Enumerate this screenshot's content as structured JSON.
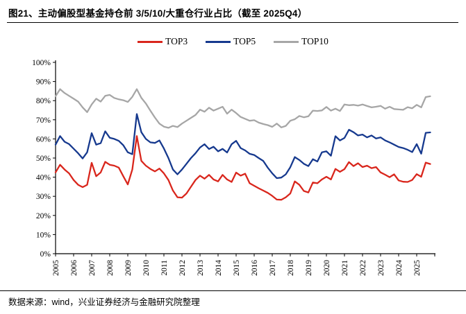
{
  "header": {
    "title": "图21、主动偏股型基金持仓前 3/5/10/大重仓行业占比（截至 2025Q4）"
  },
  "legend": [
    {
      "label": "TOP3",
      "color": "#D9261C"
    },
    {
      "label": "TOP5",
      "color": "#16398E"
    },
    {
      "label": "TOP10",
      "color": "#A6A6A6"
    }
  ],
  "footer": {
    "source": "数据来源：wind，兴业证券经济与金融研究院整理"
  },
  "chart_data": {
    "type": "line",
    "title": "主动偏股型基金持仓前3/5/10大重仓行业占比",
    "xlabel": "",
    "ylabel": "",
    "ylim": [
      0,
      100
    ],
    "grid": false,
    "legend_position": "top",
    "y_tick_labels": [
      "0%",
      "10%",
      "20%",
      "30%",
      "40%",
      "50%",
      "60%",
      "70%",
      "80%",
      "90%",
      "100%"
    ],
    "x_year_labels": [
      "2005",
      "2006",
      "2007",
      "2008",
      "2009",
      "2010",
      "2011",
      "2012",
      "2013",
      "2014",
      "2015",
      "2016",
      "2017",
      "2018",
      "2019",
      "2020",
      "2021",
      "2022",
      "2023",
      "2024",
      "2025"
    ],
    "x_frequency": "quarterly",
    "x_start": "2005Q1",
    "x_end": "2025Q4",
    "series": [
      {
        "name": "TOP3",
        "color": "#D9261C",
        "values": [
          42.5,
          46.5,
          44,
          42,
          38.5,
          36,
          34.8,
          36,
          47.5,
          40.5,
          42.5,
          48,
          46.5,
          46,
          45,
          40.5,
          36.2,
          44,
          61.5,
          48.5,
          46,
          44.3,
          43,
          44.5,
          42,
          38.5,
          33,
          29.5,
          29.3,
          31.5,
          35,
          38.5,
          40.8,
          39.2,
          41.2,
          38.8,
          37.8,
          41.2,
          38.8,
          37.5,
          42.4,
          40.8,
          41.8,
          36.8,
          35.5,
          34.2,
          33,
          31.8,
          30.2,
          28.3,
          28.2,
          29.5,
          31.5,
          37.8,
          36,
          32.8,
          32,
          37.2,
          36.8,
          38.8,
          40.2,
          38.8,
          44.3,
          42.8,
          44.2,
          47.9,
          45.8,
          47.3,
          45.3,
          46,
          44.7,
          45.3,
          42.5,
          41.3,
          40,
          41.5,
          38.3,
          37.6,
          37.5,
          38.5,
          41.6,
          40.2,
          47.6,
          46.9
        ]
      },
      {
        "name": "TOP5",
        "color": "#16398E",
        "values": [
          57,
          61.5,
          58.5,
          57.3,
          54.9,
          52.5,
          49.8,
          53,
          63,
          57,
          57.8,
          64,
          60.6,
          60,
          59,
          56.7,
          53,
          52,
          73,
          63.5,
          60,
          58.2,
          57.9,
          59.2,
          55,
          50,
          44,
          41.5,
          44,
          47,
          50,
          52.5,
          55.5,
          57.2,
          54.7,
          55.9,
          53.5,
          54.8,
          52.9,
          57.2,
          59,
          55.2,
          54,
          52.2,
          51.6,
          50,
          48.5,
          45,
          42,
          39.5,
          39.8,
          41.5,
          45.2,
          50.5,
          49,
          47,
          45.8,
          49.4,
          48.2,
          53,
          53.5,
          51.2,
          61.4,
          59.2,
          60.5,
          64.8,
          63.5,
          61.8,
          62.3,
          60.8,
          61.8,
          60.2,
          60.8,
          59.2,
          58.2,
          57,
          55.8,
          55.2,
          54.3,
          53.1,
          57.3,
          52.3,
          63.2,
          63.4
        ]
      },
      {
        "name": "TOP10",
        "color": "#A6A6A6",
        "values": [
          82.3,
          86,
          84,
          82.5,
          81,
          79.5,
          76.5,
          74,
          78,
          81,
          79.5,
          82.5,
          83,
          81.4,
          80.7,
          80.2,
          79.3,
          82,
          86,
          81.5,
          78.5,
          74.8,
          71.2,
          68,
          66.4,
          65.8,
          66.8,
          66.2,
          68,
          69.5,
          71,
          72.5,
          75.3,
          74.2,
          76.3,
          74.8,
          75.8,
          76.8,
          73.2,
          75.3,
          73.5,
          71.5,
          70.5,
          69.5,
          69.8,
          68.5,
          67.8,
          67.2,
          66.3,
          68,
          66,
          66.8,
          69.5,
          70.3,
          72,
          71.3,
          71.8,
          74.8,
          74.6,
          74.9,
          76.7,
          74.8,
          75.8,
          74.6,
          78,
          77.6,
          77.8,
          77.4,
          78,
          77.2,
          76.5,
          76.8,
          77.3,
          75.8,
          76.8,
          75.6,
          75.4,
          75.2,
          76.6,
          76,
          77.8,
          76.5,
          81.9,
          82.3
        ]
      }
    ]
  }
}
